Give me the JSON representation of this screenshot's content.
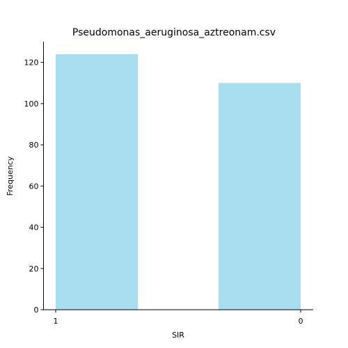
{
  "chart_data": {
    "type": "bar",
    "title": "Pseudomonas_aeruginosa_aztreonam.csv",
    "xlabel": "SIR",
    "ylabel": "Frequency",
    "categories": [
      "1",
      "0"
    ],
    "values": [
      124,
      110
    ],
    "ylim": [
      0,
      130
    ],
    "yticks": [
      0,
      20,
      40,
      60,
      80,
      100,
      120
    ],
    "bar_color": "#a8dcef",
    "grid": false,
    "legend": false
  }
}
